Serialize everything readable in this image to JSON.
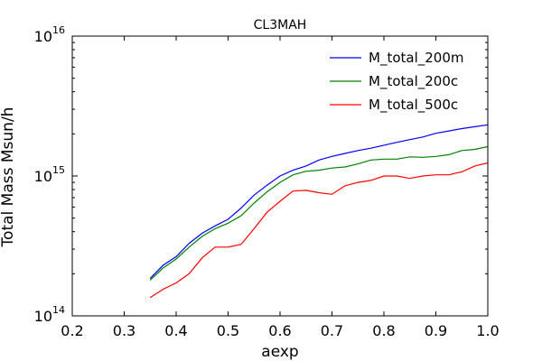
{
  "chart_data": {
    "type": "line",
    "title": "CL3MAH",
    "xlabel": "aexp",
    "ylabel": "Total Mass Msun/h",
    "xlim": [
      0.2,
      1.0
    ],
    "ylim": [
      100000000000000.0,
      1e+16
    ],
    "yscale": "log",
    "x_ticks": [
      "0.2",
      "0.3",
      "0.4",
      "0.5",
      "0.6",
      "0.7",
      "0.8",
      "0.9",
      "1.0"
    ],
    "y_ticks": [
      {
        "base": "10",
        "exp": "14",
        "value": 100000000000000.0
      },
      {
        "base": "10",
        "exp": "15",
        "value": 1000000000000000.0
      },
      {
        "base": "10",
        "exp": "16",
        "value": 1e+16
      }
    ],
    "legend_position": "top-right",
    "x": [
      0.35,
      0.375,
      0.4,
      0.425,
      0.45,
      0.475,
      0.5,
      0.525,
      0.55,
      0.575,
      0.6,
      0.625,
      0.65,
      0.675,
      0.7,
      0.725,
      0.75,
      0.775,
      0.8,
      0.825,
      0.85,
      0.875,
      0.9,
      0.925,
      0.95,
      0.975,
      1.0
    ],
    "series": [
      {
        "name": "M_total_200m",
        "color": "#0000ff",
        "values": [
          185000000000000.0,
          230000000000000.0,
          265000000000000.0,
          330000000000000.0,
          390000000000000.0,
          440000000000000.0,
          490000000000000.0,
          590000000000000.0,
          730000000000000.0,
          860000000000000.0,
          1000000000000000.0,
          1100000000000000.0,
          1180000000000000.0,
          1300000000000000.0,
          1380000000000000.0,
          1450000000000000.0,
          1520000000000000.0,
          1580000000000000.0,
          1660000000000000.0,
          1740000000000000.0,
          1820000000000000.0,
          1900000000000000.0,
          2020000000000000.0,
          2100000000000000.0,
          2180000000000000.0,
          2250000000000000.0,
          2320000000000000.0
        ]
      },
      {
        "name": "M_total_200c",
        "color": "#008000",
        "values": [
          180000000000000.0,
          220000000000000.0,
          255000000000000.0,
          310000000000000.0,
          370000000000000.0,
          420000000000000.0,
          460000000000000.0,
          520000000000000.0,
          640000000000000.0,
          770000000000000.0,
          900000000000000.0,
          1020000000000000.0,
          1080000000000000.0,
          1100000000000000.0,
          1140000000000000.0,
          1160000000000000.0,
          1220000000000000.0,
          1300000000000000.0,
          1320000000000000.0,
          1320000000000000.0,
          1370000000000000.0,
          1360000000000000.0,
          1380000000000000.0,
          1420000000000000.0,
          1520000000000000.0,
          1550000000000000.0,
          1620000000000000.0
        ]
      },
      {
        "name": "M_total_500c",
        "color": "#ff0000",
        "values": [
          135000000000000.0,
          155000000000000.0,
          172000000000000.0,
          200000000000000.0,
          260000000000000.0,
          310000000000000.0,
          310000000000000.0,
          325000000000000.0,
          420000000000000.0,
          550000000000000.0,
          660000000000000.0,
          780000000000000.0,
          790000000000000.0,
          760000000000000.0,
          740000000000000.0,
          850000000000000.0,
          900000000000000.0,
          930000000000000.0,
          1000000000000000.0,
          1000000000000000.0,
          960000000000000.0,
          1000000000000000.0,
          1020000000000000.0,
          1020000000000000.0,
          1070000000000000.0,
          1180000000000000.0,
          1240000000000000.0
        ]
      }
    ]
  }
}
